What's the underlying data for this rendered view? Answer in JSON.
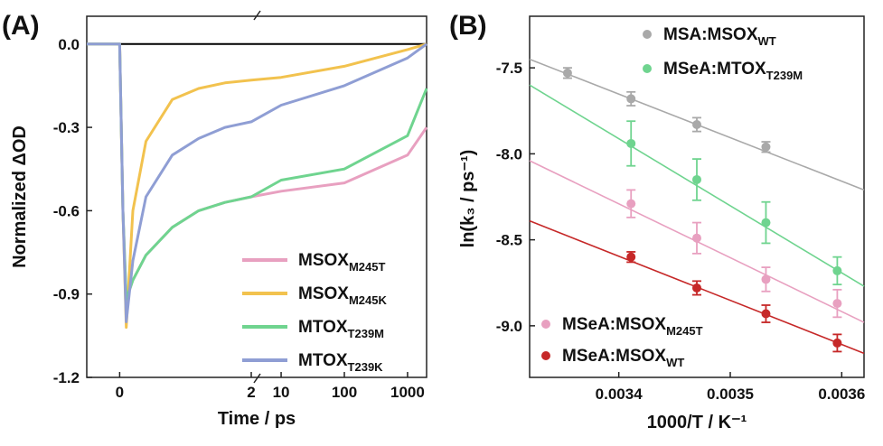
{
  "chart_data": [
    {
      "type": "line",
      "panel_label": "(A)",
      "xlabel": "Time / ps",
      "ylabel": "Normalized ΔOD",
      "ylim": [
        -1.2,
        0.1
      ],
      "x_axis": "broken: linear [-0.5, 2] then log [5, 2000]",
      "xticks_linear": [
        "0",
        "2"
      ],
      "xticks_log": [
        "10",
        "100",
        "1000"
      ],
      "yticks": [
        "0.0",
        "-0.3",
        "-0.6",
        "-0.9",
        "-1.2"
      ],
      "legend": {
        "position": "bottom-right",
        "entries": [
          {
            "name": "MSOX",
            "sub": "M245T",
            "color": "#e8a0c0"
          },
          {
            "name": "MSOX",
            "sub": "M245K",
            "color": "#f2c24e"
          },
          {
            "name": "MTOX",
            "sub": "T239M",
            "color": "#6fd48f"
          },
          {
            "name": "MTOX",
            "sub": "T239K",
            "color": "#8f9ed4"
          }
        ]
      },
      "series": [
        {
          "name": "MSOX_M245T",
          "color": "#e8a0c0",
          "t": [
            -0.5,
            0.0,
            0.05,
            0.1,
            0.2,
            0.4,
            0.8,
            1.2,
            1.6,
            2.0,
            10,
            100,
            1000,
            2000
          ],
          "values": [
            0.0,
            0.0,
            -0.6,
            -0.92,
            -0.85,
            -0.76,
            -0.66,
            -0.6,
            -0.57,
            -0.55,
            -0.53,
            -0.5,
            -0.4,
            -0.3
          ]
        },
        {
          "name": "MSOX_M245K",
          "color": "#f2c24e",
          "t": [
            -0.5,
            0.0,
            0.05,
            0.1,
            0.2,
            0.4,
            0.8,
            1.2,
            1.6,
            2.0,
            10,
            100,
            1000,
            2000
          ],
          "values": [
            0.0,
            0.0,
            -0.6,
            -1.02,
            -0.6,
            -0.35,
            -0.2,
            -0.16,
            -0.14,
            -0.13,
            -0.12,
            -0.08,
            -0.02,
            0.0
          ]
        },
        {
          "name": "MTOX_T239M",
          "color": "#6fd48f",
          "t": [
            -0.5,
            0.0,
            0.05,
            0.1,
            0.2,
            0.4,
            0.8,
            1.2,
            1.6,
            2.0,
            10,
            100,
            1000,
            2000
          ],
          "values": [
            0.0,
            0.0,
            -0.6,
            -0.92,
            -0.85,
            -0.76,
            -0.66,
            -0.6,
            -0.57,
            -0.55,
            -0.49,
            -0.45,
            -0.33,
            -0.16
          ]
        },
        {
          "name": "MTOX_T239K",
          "color": "#8f9ed4",
          "t": [
            -0.5,
            0.0,
            0.05,
            0.1,
            0.2,
            0.4,
            0.8,
            1.2,
            1.6,
            2.0,
            10,
            100,
            1000,
            2000
          ],
          "values": [
            0.0,
            0.0,
            -0.6,
            -1.0,
            -0.78,
            -0.55,
            -0.4,
            -0.34,
            -0.3,
            -0.28,
            -0.22,
            -0.15,
            -0.05,
            0.0
          ]
        }
      ]
    },
    {
      "type": "scatter",
      "panel_label": "(B)",
      "xlabel": "1000/T / K⁻¹",
      "ylabel": "ln(k₃ / ps⁻¹)",
      "xlim": [
        0.00332,
        0.00362
      ],
      "ylim": [
        -9.3,
        -7.2
      ],
      "xticks": [
        "0.0034",
        "0.0035",
        "0.0036"
      ],
      "yticks": [
        "-7.5",
        "-8.0",
        "-8.5",
        "-9.0"
      ],
      "legend": {
        "top-right": [
          {
            "name": "MSA:MSOX",
            "sub": "WT",
            "color": "#a9a9a9"
          },
          {
            "name": "MSeA:MTOX",
            "sub": "T239M",
            "color": "#6fd48f"
          }
        ],
        "bottom-left": [
          {
            "name": "MSeA:MSOX",
            "sub": "M245T",
            "color": "#e8a0c0"
          },
          {
            "name": "MSeA:MSOX",
            "sub": "WT",
            "color": "#c62828"
          }
        ]
      },
      "series": [
        {
          "name": "MSA:MSOX_WT",
          "color": "#a9a9a9",
          "x": [
            0.003354,
            0.003411,
            0.00347,
            0.003532
          ],
          "y": [
            -7.53,
            -7.68,
            -7.83,
            -7.96
          ],
          "err": [
            0.03,
            0.04,
            0.04,
            0.03
          ],
          "fit": {
            "x": [
              0.00332,
              0.00362
            ],
            "y": [
              -7.45,
              -8.21
            ]
          }
        },
        {
          "name": "MSeA:MTOX_T239M",
          "color": "#6fd48f",
          "x": [
            0.003411,
            0.00347,
            0.003532,
            0.003596
          ],
          "y": [
            -7.94,
            -8.15,
            -8.4,
            -8.68
          ],
          "err": [
            0.13,
            0.12,
            0.12,
            0.08
          ],
          "fit": {
            "x": [
              0.00332,
              0.00362
            ],
            "y": [
              -7.6,
              -8.77
            ]
          }
        },
        {
          "name": "MSeA:MSOX_M245T",
          "color": "#e8a0c0",
          "x": [
            0.003411,
            0.00347,
            0.003532,
            0.003596
          ],
          "y": [
            -8.29,
            -8.49,
            -8.73,
            -8.87
          ],
          "err": [
            0.08,
            0.09,
            0.07,
            0.08
          ],
          "fit": {
            "x": [
              0.00332,
              0.00362
            ],
            "y": [
              -8.04,
              -8.98
            ]
          }
        },
        {
          "name": "MSeA:MSOX_WT",
          "color": "#c62828",
          "x": [
            0.003411,
            0.00347,
            0.003532,
            0.003596
          ],
          "y": [
            -8.6,
            -8.78,
            -8.93,
            -9.1
          ],
          "err": [
            0.03,
            0.04,
            0.05,
            0.05
          ],
          "fit": {
            "x": [
              0.00332,
              0.00362
            ],
            "y": [
              -8.39,
              -9.16
            ]
          }
        }
      ]
    }
  ]
}
